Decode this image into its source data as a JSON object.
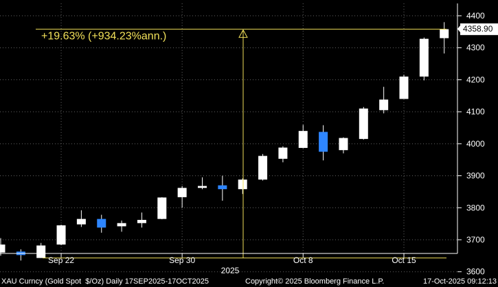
{
  "chart_data": {
    "type": "candlestick",
    "ylim": [
      3570,
      4420
    ],
    "y_ticks": [
      3600,
      3700,
      3800,
      3900,
      4000,
      4100,
      4200,
      4300,
      4400
    ],
    "x_ticks": [
      {
        "label": "Sep 22",
        "index": 3
      },
      {
        "label": "Sep 30",
        "index": 9
      },
      {
        "label": "Oct 8",
        "index": 15
      },
      {
        "label": "Oct 15",
        "index": 20
      }
    ],
    "year_label": "2025",
    "last_price": "4358.90",
    "annotation": "+19.63% (+934.23%ann.)",
    "measure_from": 3643,
    "measure_to": 4358,
    "candles": [
      {
        "o": 3660,
        "h": 3705,
        "l": 3650,
        "c": 3685
      },
      {
        "o": 3663,
        "h": 3670,
        "l": 3635,
        "c": 3652
      },
      {
        "o": 3643,
        "h": 3690,
        "l": 3643,
        "c": 3682
      },
      {
        "o": 3685,
        "h": 3747,
        "l": 3683,
        "c": 3745
      },
      {
        "o": 3748,
        "h": 3792,
        "l": 3740,
        "c": 3765
      },
      {
        "o": 3765,
        "h": 3778,
        "l": 3722,
        "c": 3738
      },
      {
        "o": 3742,
        "h": 3760,
        "l": 3725,
        "c": 3752
      },
      {
        "o": 3752,
        "h": 3785,
        "l": 3738,
        "c": 3762
      },
      {
        "o": 3765,
        "h": 3833,
        "l": 3764,
        "c": 3832
      },
      {
        "o": 3833,
        "h": 3868,
        "l": 3800,
        "c": 3862
      },
      {
        "o": 3862,
        "h": 3895,
        "l": 3858,
        "c": 3868
      },
      {
        "o": 3870,
        "h": 3900,
        "l": 3822,
        "c": 3858
      },
      {
        "o": 3858,
        "h": 3892,
        "l": 3843,
        "c": 3888
      },
      {
        "o": 3888,
        "h": 3968,
        "l": 3885,
        "c": 3962
      },
      {
        "o": 3953,
        "h": 3992,
        "l": 3942,
        "c": 3988
      },
      {
        "o": 3987,
        "h": 4059,
        "l": 3986,
        "c": 4040
      },
      {
        "o": 4037,
        "h": 4058,
        "l": 3948,
        "c": 3975
      },
      {
        "o": 3980,
        "h": 4020,
        "l": 3970,
        "c": 4018
      },
      {
        "o": 4015,
        "h": 4115,
        "l": 4013,
        "c": 4110
      },
      {
        "o": 4105,
        "h": 4178,
        "l": 4095,
        "c": 4138
      },
      {
        "o": 4140,
        "h": 4216,
        "l": 4140,
        "c": 4210
      },
      {
        "o": 4210,
        "h": 4332,
        "l": 4198,
        "c": 4328
      },
      {
        "o": 4330,
        "h": 4380,
        "l": 4282,
        "c": 4358
      }
    ]
  },
  "footer": {
    "left": "XAU Curncy (Gold Spot  $/Oz) Daily 17SEP2025-17OCT2025",
    "center": "Copyright© 2025 Bloomberg Finance L.P.",
    "right": "17-Oct-2025 09:12:13"
  },
  "colors": {
    "up_candle": "#ffffff",
    "down_candle": "#2e86ff",
    "annotation": "#f2e15a",
    "axis": "#ffffff",
    "background": "#000000"
  }
}
